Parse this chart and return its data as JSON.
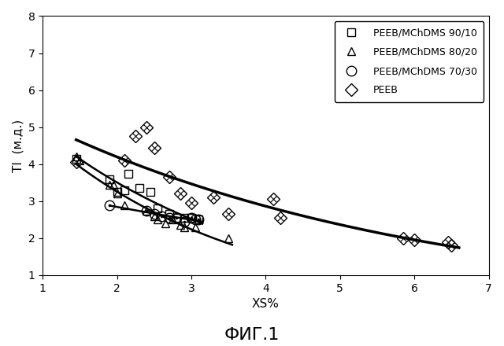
{
  "xlabel": "XS%",
  "ylabel": "TI  (м.д.)",
  "fig_label": "ФИГ.1",
  "xlim": [
    1.0,
    7.0
  ],
  "ylim": [
    1.0,
    8.0
  ],
  "xticks": [
    1,
    2,
    3,
    4,
    5,
    6,
    7
  ],
  "yticks": [
    1,
    2,
    3,
    4,
    5,
    6,
    7,
    8
  ],
  "series": {
    "square": {
      "label": "PEEB/MChDMS 90/10",
      "x": [
        1.45,
        1.9,
        2.0,
        2.1,
        2.15,
        2.3,
        2.45,
        2.55,
        2.7,
        2.8,
        2.9,
        3.0,
        3.1
      ],
      "y": [
        4.15,
        3.6,
        3.25,
        3.3,
        3.75,
        3.35,
        3.25,
        2.8,
        2.65,
        2.55,
        2.55,
        2.55,
        2.5
      ],
      "curve_x_start": 1.45,
      "curve_x_end": 3.15
    },
    "triangle": {
      "label": "PEEB/MChDMS 80/20",
      "x": [
        1.45,
        1.5,
        1.9,
        1.95,
        2.0,
        2.1,
        2.4,
        2.5,
        2.55,
        2.65,
        2.75,
        2.85,
        2.9,
        3.05,
        3.5
      ],
      "y": [
        4.2,
        4.1,
        3.45,
        3.45,
        3.2,
        2.9,
        2.75,
        2.6,
        2.5,
        2.4,
        2.5,
        2.35,
        2.3,
        2.3,
        2.0
      ],
      "curve_x_start": 1.45,
      "curve_x_end": 3.55
    },
    "circle": {
      "label": "PEEB/MChDMS 70/30",
      "x": [
        1.9,
        2.4,
        2.5,
        2.6,
        2.7,
        2.8,
        2.9,
        3.0,
        3.05,
        3.1
      ],
      "y": [
        2.9,
        2.75,
        2.65,
        2.6,
        2.55,
        2.55,
        2.45,
        2.55,
        2.5,
        2.5
      ],
      "curve_x_start": 1.9,
      "curve_x_end": 3.15
    },
    "diamond": {
      "label": "PEEB",
      "x": [
        1.45,
        2.1,
        2.25,
        2.4,
        2.5,
        2.7,
        2.85,
        3.0,
        3.3,
        3.5,
        4.1,
        4.2,
        5.85,
        6.0,
        6.45,
        6.5
      ],
      "y": [
        4.05,
        4.1,
        4.75,
        5.0,
        4.45,
        3.65,
        3.2,
        2.95,
        3.1,
        2.65,
        3.05,
        2.55,
        2.0,
        1.95,
        1.9,
        1.8
      ],
      "curve_x_start": 1.45,
      "curve_x_end": 6.6
    }
  },
  "background_color": "#ffffff",
  "marker_facecolor": "none",
  "marker_edgecolor": "#000000",
  "curve_color": "#000000",
  "markersize": 7,
  "linewidth": 1.8,
  "linewidth_peeb": 2.5,
  "fontsize_label": 11,
  "fontsize_tick": 10,
  "fontsize_fig_label": 16,
  "fontsize_legend": 9
}
